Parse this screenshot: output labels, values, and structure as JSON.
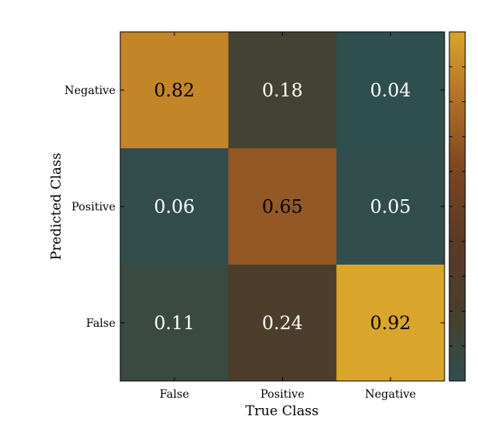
{
  "chart_data": {
    "type": "heatmap",
    "title": "",
    "xlabel": "True Class",
    "ylabel": "Predicted Class",
    "x_categories": [
      "False",
      "Positive",
      "Negative"
    ],
    "y_categories": [
      "Negative",
      "Positive",
      "False"
    ],
    "values": [
      [
        0.82,
        0.18,
        0.04
      ],
      [
        0.06,
        0.65,
        0.05
      ],
      [
        0.11,
        0.24,
        0.92
      ]
    ],
    "value_labels": [
      [
        "0.82",
        "0.18",
        "0.04"
      ],
      [
        "0.06",
        "0.65",
        "0.05"
      ],
      [
        "0.11",
        "0.24",
        "0.92"
      ]
    ],
    "color_range": [
      0.04,
      0.92
    ],
    "colormap": [
      "#2f4f4f",
      "#4a3f2c",
      "#5c3a26",
      "#7a4520",
      "#b06e27",
      "#daa52b"
    ],
    "colorbar": true,
    "colorbar_ticks_labeled": false,
    "grid": false
  }
}
